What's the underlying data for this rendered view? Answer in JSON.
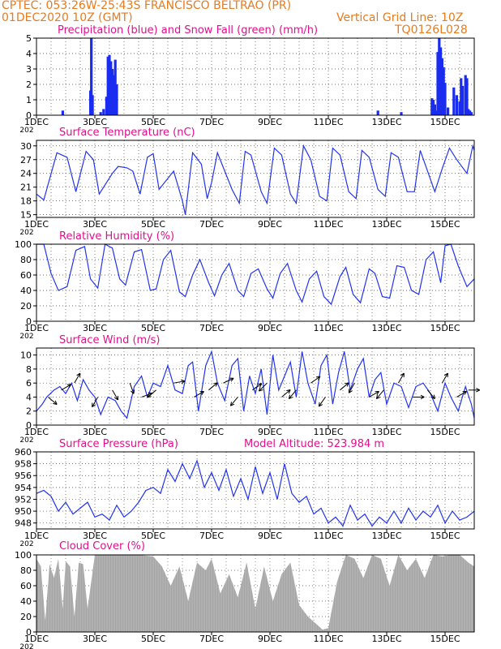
{
  "header": {
    "line1": "CPTEC:   053:26W-25:43S   FRANCISCO BELTRAO (PR)",
    "line2": "01DEC2020 10Z (GMT)",
    "grid_note": "Vertical Grid Line: 10Z",
    "code": "TQ0126L028"
  },
  "colors": {
    "header": "#e87b1e",
    "title": "#e0108c",
    "line": "#2233ee",
    "precip": "#1a2cf0",
    "snow": "#22aa22",
    "cloud": "#a6a6a6"
  },
  "x_axis": {
    "range_days": [
      1,
      16
    ],
    "tick_labels": [
      "1DEC",
      "3DEC",
      "5DEC",
      "7DEC",
      "9DEC",
      "11DEC",
      "13DEC",
      "15DEC"
    ],
    "tick_days": [
      1,
      3,
      5,
      7,
      9,
      11,
      13,
      15
    ],
    "year_fragment": "202"
  },
  "chart_data": [
    {
      "type": "bar",
      "title": "Precipitation (blue) and Snow Fall (green) (mm/h)",
      "ylim": [
        0,
        5
      ],
      "yticks": [
        "0",
        "1",
        "2",
        "3",
        "4",
        "5"
      ],
      "series": [
        {
          "name": "Precipitation",
          "x": [
            1.9,
            2.85,
            2.88,
            2.92,
            3.2,
            3.3,
            3.4,
            3.45,
            3.5,
            3.55,
            3.6,
            3.65,
            3.7,
            3.75,
            12.7,
            13.5,
            14.55,
            14.6,
            14.65,
            14.7,
            14.75,
            14.8,
            14.85,
            14.9,
            14.95,
            15.0,
            15.1,
            15.3,
            15.4,
            15.5,
            15.55,
            15.6,
            15.7,
            15.75,
            15.8,
            15.85,
            15.9
          ],
          "values": [
            0.3,
            1.6,
            5.0,
            1.3,
            0.2,
            0.4,
            1.2,
            3.8,
            3.9,
            3.5,
            3.0,
            2.6,
            3.6,
            2.0,
            0.3,
            0.2,
            1.1,
            1.0,
            0.7,
            0.3,
            4.1,
            5.0,
            4.4,
            3.7,
            3.1,
            2.1,
            0.5,
            1.8,
            1.3,
            0.9,
            2.4,
            1.9,
            2.6,
            2.4,
            0.4,
            0.3,
            0.2
          ]
        },
        {
          "name": "Snow Fall",
          "x": [],
          "values": []
        }
      ]
    },
    {
      "type": "line",
      "title": "Surface Temperature (nC)",
      "ylim": [
        14.4,
        31.2
      ],
      "yticks": [
        "15",
        "18",
        "21",
        "24",
        "27",
        "30"
      ],
      "x": [
        1.0,
        1.25,
        1.7,
        2.05,
        2.35,
        2.7,
        2.95,
        3.15,
        3.6,
        3.8,
        4.1,
        4.3,
        4.55,
        4.8,
        5.0,
        5.2,
        5.7,
        6.0,
        6.1,
        6.35,
        6.65,
        6.85,
        7.0,
        7.2,
        7.7,
        7.95,
        8.15,
        8.35,
        8.7,
        8.9,
        9.15,
        9.4,
        9.7,
        9.9,
        10.15,
        10.4,
        10.7,
        10.95,
        11.15,
        11.4,
        11.7,
        11.95,
        12.15,
        12.4,
        12.7,
        12.95,
        13.15,
        13.4,
        13.7,
        13.95,
        14.15,
        14.4,
        14.65,
        14.9,
        15.15,
        15.4,
        15.75,
        15.95,
        16.0
      ],
      "values": [
        19.5,
        18.2,
        28.5,
        27.5,
        20.0,
        28.8,
        27.0,
        19.5,
        24.0,
        25.5,
        25.2,
        24.5,
        19.5,
        27.5,
        28.3,
        20.5,
        24.5,
        18.0,
        15.0,
        28.5,
        26.0,
        18.5,
        22.0,
        28.5,
        20.5,
        17.5,
        28.8,
        28.0,
        20.0,
        17.5,
        29.5,
        28.0,
        19.5,
        17.5,
        30.0,
        27.0,
        19.0,
        18.0,
        29.5,
        28.0,
        20.0,
        18.5,
        29.0,
        27.5,
        20.5,
        19.0,
        28.5,
        27.5,
        20.0,
        20.0,
        29.0,
        24.5,
        20.0,
        25.0,
        29.5,
        27.0,
        24.0,
        30.0,
        29.0
      ]
    },
    {
      "type": "line",
      "title": "Relative Humidity (%)",
      "ylim": [
        0,
        100
      ],
      "yticks": [
        "0",
        "20",
        "40",
        "60",
        "80",
        "100"
      ],
      "x": [
        1.0,
        1.25,
        1.5,
        1.75,
        2.05,
        2.35,
        2.65,
        2.85,
        3.1,
        3.35,
        3.6,
        3.85,
        4.05,
        4.35,
        4.6,
        4.9,
        5.1,
        5.35,
        5.6,
        5.9,
        6.1,
        6.35,
        6.6,
        6.9,
        7.1,
        7.35,
        7.6,
        7.9,
        8.1,
        8.35,
        8.6,
        8.9,
        9.1,
        9.35,
        9.6,
        9.9,
        10.1,
        10.35,
        10.6,
        10.85,
        11.1,
        11.4,
        11.6,
        11.85,
        12.1,
        12.4,
        12.6,
        12.85,
        13.1,
        13.35,
        13.6,
        13.85,
        14.1,
        14.35,
        14.6,
        14.85,
        15.0,
        15.2,
        15.45,
        15.75,
        16.0
      ],
      "values": [
        100,
        100,
        62,
        40,
        45,
        92,
        97,
        55,
        43,
        100,
        95,
        55,
        47,
        90,
        93,
        40,
        42,
        80,
        92,
        38,
        32,
        60,
        80,
        50,
        33,
        60,
        75,
        40,
        32,
        62,
        68,
        42,
        30,
        62,
        75,
        40,
        25,
        55,
        65,
        32,
        22,
        58,
        70,
        35,
        24,
        68,
        62,
        32,
        30,
        72,
        70,
        40,
        35,
        80,
        90,
        50,
        98,
        100,
        72,
        45,
        55
      ]
    },
    {
      "type": "line",
      "title": "Surface Wind (m/s)",
      "ylim": [
        0,
        11
      ],
      "yticks": [
        "0",
        "2",
        "4",
        "6",
        "8",
        "10"
      ],
      "x": [
        1.0,
        1.2,
        1.35,
        1.6,
        1.8,
        2.0,
        2.2,
        2.4,
        2.6,
        2.8,
        3.0,
        3.2,
        3.45,
        3.7,
        3.9,
        4.1,
        4.35,
        4.6,
        4.8,
        5.0,
        5.25,
        5.5,
        5.75,
        6.0,
        6.2,
        6.35,
        6.55,
        6.8,
        7.0,
        7.2,
        7.45,
        7.7,
        7.9,
        8.1,
        8.3,
        8.5,
        8.7,
        8.9,
        9.1,
        9.3,
        9.5,
        9.7,
        9.9,
        10.1,
        10.3,
        10.55,
        10.75,
        10.95,
        11.15,
        11.35,
        11.55,
        11.75,
        12.0,
        12.2,
        12.4,
        12.6,
        12.8,
        13.0,
        13.25,
        13.5,
        13.75,
        14.0,
        14.25,
        14.5,
        14.75,
        15.0,
        15.2,
        15.45,
        15.7,
        15.9,
        16.0
      ],
      "values": [
        2.0,
        3.0,
        4.0,
        5.0,
        5.5,
        4.5,
        6.0,
        3.5,
        6.5,
        5.0,
        4.0,
        1.5,
        4.0,
        3.5,
        2.0,
        1.0,
        5.5,
        7.0,
        4.0,
        6.0,
        5.5,
        8.5,
        5.0,
        4.5,
        8.5,
        9.0,
        2.0,
        8.5,
        10.5,
        6.0,
        3.5,
        8.5,
        9.5,
        2.0,
        7.0,
        4.5,
        8.0,
        1.5,
        10.0,
        5.0,
        7.0,
        9.0,
        4.0,
        10.5,
        6.0,
        3.0,
        8.5,
        10.0,
        3.0,
        7.5,
        10.5,
        5.0,
        8.0,
        9.5,
        4.0,
        6.5,
        7.5,
        3.0,
        6.0,
        5.5,
        2.5,
        5.5,
        6.0,
        4.5,
        2.0,
        6.0,
        4.0,
        2.0,
        5.5,
        3.0,
        1.0
      ]
    },
    {
      "type": "line",
      "title": "Surface Pressure (hPa)",
      "note": "Model Altitude: 523.984 m",
      "ylim": [
        947,
        960
      ],
      "yticks": [
        "948",
        "950",
        "952",
        "954",
        "956",
        "958",
        "960"
      ],
      "x": [
        1.0,
        1.25,
        1.5,
        1.75,
        2.0,
        2.25,
        2.5,
        2.75,
        3.0,
        3.25,
        3.5,
        3.75,
        4.0,
        4.25,
        4.5,
        4.75,
        5.0,
        5.25,
        5.5,
        5.75,
        6.0,
        6.25,
        6.5,
        6.75,
        7.0,
        7.25,
        7.5,
        7.75,
        8.0,
        8.25,
        8.5,
        8.75,
        9.0,
        9.25,
        9.5,
        9.75,
        10.0,
        10.25,
        10.5,
        10.75,
        11.0,
        11.25,
        11.5,
        11.75,
        12.0,
        12.25,
        12.5,
        12.75,
        13.0,
        13.25,
        13.5,
        13.75,
        14.0,
        14.25,
        14.5,
        14.75,
        15.0,
        15.25,
        15.5,
        15.75,
        16.0
      ],
      "values": [
        953.0,
        953.5,
        952.5,
        950.0,
        951.5,
        949.5,
        950.5,
        951.5,
        949.0,
        949.5,
        948.5,
        951.0,
        949.0,
        950.0,
        951.5,
        953.5,
        954.0,
        953.0,
        957.0,
        955.0,
        958.0,
        955.5,
        958.5,
        954.0,
        956.5,
        953.5,
        957.0,
        952.5,
        955.5,
        952.0,
        957.5,
        953.0,
        956.5,
        952.0,
        958.0,
        953.0,
        951.5,
        952.5,
        949.5,
        950.5,
        948.0,
        949.0,
        947.5,
        951.0,
        948.5,
        949.5,
        947.5,
        949.0,
        948.0,
        950.0,
        948.0,
        950.5,
        948.5,
        950.0,
        949.0,
        951.0,
        948.0,
        950.0,
        948.5,
        949.0,
        950.0
      ]
    },
    {
      "type": "area",
      "title": "Cloud Cover (%)",
      "ylim": [
        0,
        100
      ],
      "yticks": [
        "0",
        "20",
        "40",
        "60",
        "80",
        "100"
      ],
      "x": [
        1.0,
        1.15,
        1.3,
        1.45,
        1.6,
        1.75,
        1.9,
        2.0,
        2.15,
        2.3,
        2.45,
        2.6,
        2.75,
        3.0,
        3.5,
        4.0,
        4.5,
        5.0,
        5.3,
        5.6,
        5.9,
        6.2,
        6.5,
        6.8,
        7.0,
        7.3,
        7.6,
        7.9,
        8.2,
        8.5,
        8.8,
        9.1,
        9.4,
        9.7,
        10.0,
        10.3,
        10.6,
        10.8,
        11.0,
        11.3,
        11.6,
        11.9,
        12.2,
        12.5,
        12.8,
        13.1,
        13.4,
        13.7,
        14.0,
        14.3,
        14.6,
        14.9,
        15.2,
        15.5,
        15.8,
        16.0
      ],
      "values": [
        95,
        85,
        15,
        88,
        70,
        95,
        30,
        92,
        85,
        20,
        90,
        88,
        30,
        100,
        100,
        100,
        100,
        98,
        85,
        60,
        85,
        40,
        90,
        80,
        95,
        50,
        75,
        45,
        90,
        30,
        85,
        40,
        75,
        90,
        35,
        20,
        10,
        3,
        5,
        65,
        100,
        95,
        70,
        100,
        95,
        60,
        100,
        80,
        95,
        70,
        100,
        98,
        100,
        100,
        90,
        85
      ]
    }
  ]
}
